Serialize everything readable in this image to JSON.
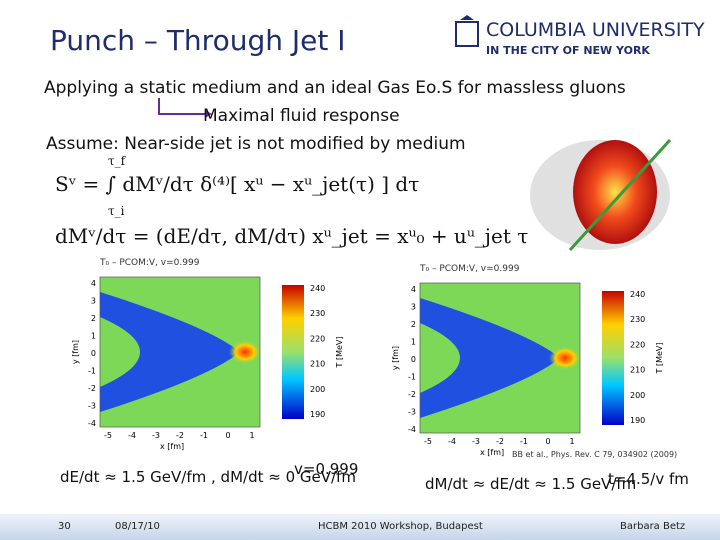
{
  "title": "Punch – Through Jet I",
  "logo": {
    "name": "COLUMBIA UNIVERSITY",
    "subtitle": "IN THE CITY OF NEW YORK"
  },
  "lines": [
    "Applying a static medium and an ideal Gas Eo.S for massless gluons",
    "Maximal fluid response",
    "Assume: Near-side jet is not modified by medium"
  ],
  "equations": [
    "Sᵛ = ∫ dMᵛ/dτ δ⁽⁴⁾[ xᵘ − xᵘ_jet(τ) ] dτ",
    "τ_f",
    "τ_i",
    "dMᵛ/dτ = (dE/dτ, dM/dτ)   xᵘ_jet = xᵘ₀ + uᵘ_jet τ"
  ],
  "plots": [
    {
      "title": "T₀ – PCOM:V, v=0.999",
      "xlabel": "x [fm]",
      "ylabel": "y [fm]",
      "cbar_label": "T [MeV]",
      "xticks": [
        -5,
        -4,
        -3,
        -2,
        -1,
        0,
        1
      ],
      "yticks": [
        4,
        3,
        2,
        1,
        0,
        -1,
        -2,
        -3,
        -4
      ],
      "cticks": [
        240,
        230,
        220,
        210,
        200,
        190
      ]
    },
    {
      "title": "T₀ – PCOM:V, v=0.999",
      "xlabel": "x [fm]",
      "ylabel": "y [fm]",
      "cbar_label": "T [MeV]",
      "xticks": [
        -5,
        -4,
        -3,
        -2,
        -1,
        0,
        1
      ],
      "yticks": [
        4,
        3,
        2,
        1,
        0,
        -1,
        -2,
        -3,
        -4
      ],
      "cticks": [
        240,
        230,
        220,
        210,
        200,
        190
      ]
    }
  ],
  "formulas": [
    "dE/dt ≈ 1.5 GeV/fm ,  dM/dt ≈ 0 GeV/fm",
    "dM/dt ≈ dE/dt ≈ 1.5 GeV/fm"
  ],
  "annotations": {
    "velocity": "v=0.999",
    "time": "t=4.5/v fm",
    "reference": "BB et al., Phys. Rev. C 79, 034902 (2009)"
  },
  "footer": {
    "page": "30",
    "date": "08/17/10",
    "event": "HCBM 2010 Workshop, Budapest",
    "author": "Barbara Betz"
  }
}
